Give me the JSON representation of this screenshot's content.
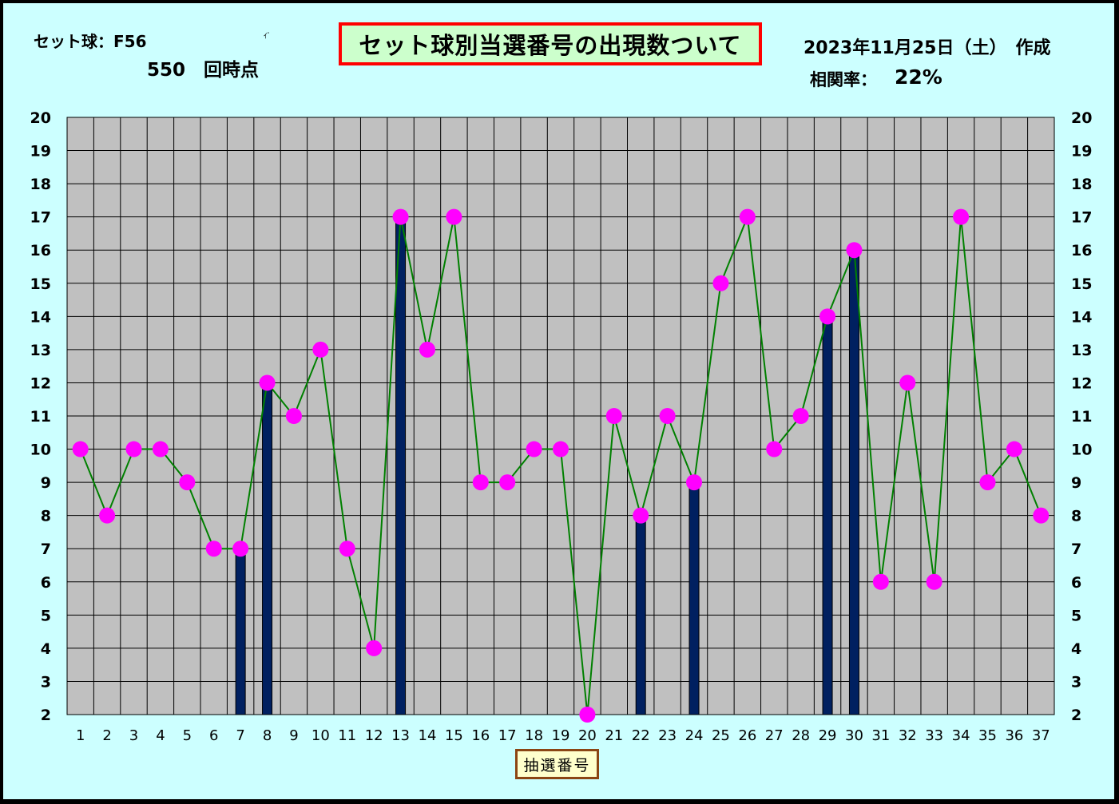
{
  "header": {
    "set_ball": "セット球：F56",
    "round": "550　回時点",
    "tiny_mark": "ｲﾞ",
    "title": "セット球別当選番号の出現数ついて",
    "date": "2023年11月25日（土）　作成",
    "corr_label": "相関率：",
    "corr_value": "22%"
  },
  "chart_data": {
    "type": "bar",
    "title": "セット球別当選番号の出現数ついて",
    "xlabel": "抽選番号",
    "ylabel": "",
    "ylim": [
      2,
      20
    ],
    "yticks": [
      2,
      3,
      4,
      5,
      6,
      7,
      8,
      9,
      10,
      11,
      12,
      13,
      14,
      15,
      16,
      17,
      18,
      19,
      20
    ],
    "grid": true,
    "categories": [
      "1",
      "2",
      "3",
      "4",
      "5",
      "6",
      "7",
      "8",
      "9",
      "10",
      "11",
      "12",
      "13",
      "14",
      "15",
      "16",
      "17",
      "18",
      "19",
      "20",
      "21",
      "22",
      "23",
      "24",
      "25",
      "26",
      "27",
      "28",
      "29",
      "30",
      "31",
      "32",
      "33",
      "34",
      "35",
      "36",
      "37"
    ],
    "series": [
      {
        "kind": "line",
        "color": "#008000",
        "marker_color": "#ff00ff",
        "values": [
          10,
          8,
          10,
          10,
          9,
          7,
          7,
          12,
          11,
          13,
          7,
          4,
          17,
          13,
          17,
          9,
          9,
          10,
          10,
          2,
          11,
          8,
          11,
          9,
          15,
          17,
          10,
          11,
          14,
          16,
          6,
          12,
          6,
          17,
          9,
          10,
          8
        ]
      },
      {
        "kind": "bar",
        "color": "#002060",
        "bars": [
          {
            "x": "7",
            "value": 7
          },
          {
            "x": "8",
            "value": 12
          },
          {
            "x": "13",
            "value": 17
          },
          {
            "x": "22",
            "value": 8
          },
          {
            "x": "24",
            "value": 9
          },
          {
            "x": "29",
            "value": 14
          },
          {
            "x": "30",
            "value": 16
          }
        ]
      }
    ]
  },
  "colors": {
    "background": "#ccffff",
    "plot_background": "#c0c0c0",
    "title_border": "#ff0000",
    "title_fill": "#ccffcc",
    "bar": "#002060",
    "line": "#008000",
    "marker": "#ff00ff"
  }
}
